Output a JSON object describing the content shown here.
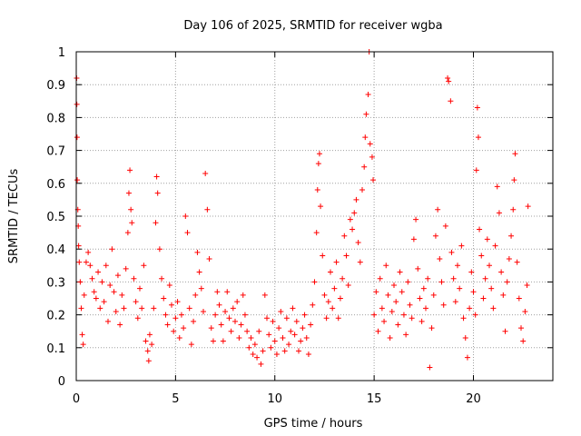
{
  "chart_data": {
    "type": "scatter",
    "title": "Day 106 of 2025, SRMTID for receiver wgba",
    "xlabel": "GPS time / hours",
    "ylabel": "SRMTID / TECUs",
    "xlim": [
      0,
      24
    ],
    "ylim": [
      0,
      1
    ],
    "xticks": [
      0,
      5,
      10,
      15,
      20
    ],
    "xtick_labels": [
      "0",
      "5",
      "10",
      "15",
      "20"
    ],
    "yticks": [
      0,
      0.1,
      0.2,
      0.3,
      0.4,
      0.5,
      0.6,
      0.7,
      0.8,
      0.9,
      1
    ],
    "ytick_labels": [
      "0",
      "0.1",
      "0.2",
      "0.3",
      "0.4",
      "0.5",
      "0.6",
      "0.7",
      "0.8",
      "0.9",
      "1"
    ],
    "grid": true,
    "marker": "+",
    "series_color": "#ff0000",
    "series": [
      {
        "name": "wgba",
        "points": [
          [
            0.02,
            0.92
          ],
          [
            0.03,
            0.84
          ],
          [
            0.04,
            0.74
          ],
          [
            0.05,
            0.61
          ],
          [
            0.08,
            0.52
          ],
          [
            0.1,
            0.47
          ],
          [
            0.12,
            0.41
          ],
          [
            0.15,
            0.36
          ],
          [
            0.2,
            0.3
          ],
          [
            0.25,
            0.22
          ],
          [
            0.3,
            0.14
          ],
          [
            0.35,
            0.11
          ],
          [
            0.4,
            0.26
          ],
          [
            0.5,
            0.36
          ],
          [
            0.6,
            0.39
          ],
          [
            0.7,
            0.35
          ],
          [
            0.8,
            0.31
          ],
          [
            0.9,
            0.27
          ],
          [
            1.0,
            0.25
          ],
          [
            1.1,
            0.33
          ],
          [
            1.2,
            0.22
          ],
          [
            1.3,
            0.3
          ],
          [
            1.4,
            0.24
          ],
          [
            1.5,
            0.35
          ],
          [
            1.6,
            0.18
          ],
          [
            1.7,
            0.29
          ],
          [
            1.8,
            0.4
          ],
          [
            1.9,
            0.27
          ],
          [
            2.0,
            0.21
          ],
          [
            2.1,
            0.32
          ],
          [
            2.2,
            0.17
          ],
          [
            2.3,
            0.26
          ],
          [
            2.4,
            0.22
          ],
          [
            2.5,
            0.34
          ],
          [
            2.6,
            0.45
          ],
          [
            2.65,
            0.57
          ],
          [
            2.7,
            0.64
          ],
          [
            2.75,
            0.52
          ],
          [
            2.8,
            0.48
          ],
          [
            2.9,
            0.31
          ],
          [
            3.0,
            0.24
          ],
          [
            3.1,
            0.19
          ],
          [
            3.2,
            0.28
          ],
          [
            3.3,
            0.22
          ],
          [
            3.4,
            0.35
          ],
          [
            3.5,
            0.12
          ],
          [
            3.6,
            0.09
          ],
          [
            3.65,
            0.06
          ],
          [
            3.7,
            0.14
          ],
          [
            3.8,
            0.11
          ],
          [
            3.9,
            0.22
          ],
          [
            4.0,
            0.48
          ],
          [
            4.05,
            0.62
          ],
          [
            4.1,
            0.57
          ],
          [
            4.2,
            0.4
          ],
          [
            4.3,
            0.31
          ],
          [
            4.4,
            0.25
          ],
          [
            4.5,
            0.2
          ],
          [
            4.6,
            0.17
          ],
          [
            4.7,
            0.29
          ],
          [
            4.8,
            0.23
          ],
          [
            4.9,
            0.15
          ],
          [
            5.0,
            0.19
          ],
          [
            5.1,
            0.24
          ],
          [
            5.2,
            0.13
          ],
          [
            5.3,
            0.2
          ],
          [
            5.4,
            0.16
          ],
          [
            5.5,
            0.5
          ],
          [
            5.6,
            0.45
          ],
          [
            5.7,
            0.22
          ],
          [
            5.8,
            0.11
          ],
          [
            5.9,
            0.18
          ],
          [
            6.0,
            0.26
          ],
          [
            6.1,
            0.39
          ],
          [
            6.2,
            0.33
          ],
          [
            6.3,
            0.28
          ],
          [
            6.4,
            0.21
          ],
          [
            6.5,
            0.63
          ],
          [
            6.6,
            0.52
          ],
          [
            6.7,
            0.37
          ],
          [
            6.8,
            0.16
          ],
          [
            6.9,
            0.12
          ],
          [
            7.0,
            0.2
          ],
          [
            7.1,
            0.27
          ],
          [
            7.2,
            0.23
          ],
          [
            7.3,
            0.17
          ],
          [
            7.4,
            0.12
          ],
          [
            7.5,
            0.21
          ],
          [
            7.6,
            0.27
          ],
          [
            7.7,
            0.19
          ],
          [
            7.8,
            0.15
          ],
          [
            7.9,
            0.22
          ],
          [
            8.0,
            0.18
          ],
          [
            8.1,
            0.24
          ],
          [
            8.2,
            0.13
          ],
          [
            8.3,
            0.17
          ],
          [
            8.4,
            0.26
          ],
          [
            8.5,
            0.2
          ],
          [
            8.6,
            0.15
          ],
          [
            8.7,
            0.1
          ],
          [
            8.8,
            0.13
          ],
          [
            8.9,
            0.08
          ],
          [
            9.0,
            0.11
          ],
          [
            9.1,
            0.07
          ],
          [
            9.2,
            0.15
          ],
          [
            9.3,
            0.05
          ],
          [
            9.4,
            0.09
          ],
          [
            9.5,
            0.26
          ],
          [
            9.6,
            0.19
          ],
          [
            9.7,
            0.14
          ],
          [
            9.8,
            0.1
          ],
          [
            9.9,
            0.18
          ],
          [
            10.0,
            0.12
          ],
          [
            10.1,
            0.08
          ],
          [
            10.2,
            0.16
          ],
          [
            10.3,
            0.21
          ],
          [
            10.4,
            0.13
          ],
          [
            10.5,
            0.09
          ],
          [
            10.6,
            0.19
          ],
          [
            10.7,
            0.11
          ],
          [
            10.8,
            0.15
          ],
          [
            10.9,
            0.22
          ],
          [
            11.0,
            0.14
          ],
          [
            11.1,
            0.18
          ],
          [
            11.2,
            0.09
          ],
          [
            11.3,
            0.12
          ],
          [
            11.4,
            0.16
          ],
          [
            11.5,
            0.2
          ],
          [
            11.6,
            0.13
          ],
          [
            11.7,
            0.08
          ],
          [
            11.8,
            0.17
          ],
          [
            11.9,
            0.23
          ],
          [
            12.0,
            0.3
          ],
          [
            12.1,
            0.45
          ],
          [
            12.15,
            0.58
          ],
          [
            12.2,
            0.66
          ],
          [
            12.25,
            0.69
          ],
          [
            12.3,
            0.53
          ],
          [
            12.4,
            0.38
          ],
          [
            12.5,
            0.26
          ],
          [
            12.6,
            0.19
          ],
          [
            12.7,
            0.24
          ],
          [
            12.8,
            0.33
          ],
          [
            12.9,
            0.22
          ],
          [
            13.0,
            0.28
          ],
          [
            13.1,
            0.36
          ],
          [
            13.2,
            0.19
          ],
          [
            13.3,
            0.25
          ],
          [
            13.4,
            0.31
          ],
          [
            13.5,
            0.44
          ],
          [
            13.6,
            0.38
          ],
          [
            13.7,
            0.29
          ],
          [
            13.8,
            0.49
          ],
          [
            13.9,
            0.46
          ],
          [
            14.0,
            0.51
          ],
          [
            14.1,
            0.55
          ],
          [
            14.2,
            0.42
          ],
          [
            14.3,
            0.36
          ],
          [
            14.4,
            0.58
          ],
          [
            14.5,
            0.65
          ],
          [
            14.55,
            0.74
          ],
          [
            14.6,
            0.81
          ],
          [
            14.7,
            0.87
          ],
          [
            14.75,
            1.0
          ],
          [
            14.8,
            0.72
          ],
          [
            14.9,
            0.68
          ],
          [
            14.95,
            0.61
          ],
          [
            15.0,
            0.2
          ],
          [
            15.1,
            0.27
          ],
          [
            15.2,
            0.15
          ],
          [
            15.3,
            0.31
          ],
          [
            15.4,
            0.22
          ],
          [
            15.5,
            0.18
          ],
          [
            15.6,
            0.35
          ],
          [
            15.7,
            0.26
          ],
          [
            15.8,
            0.13
          ],
          [
            15.9,
            0.21
          ],
          [
            16.0,
            0.29
          ],
          [
            16.1,
            0.24
          ],
          [
            16.2,
            0.17
          ],
          [
            16.3,
            0.33
          ],
          [
            16.4,
            0.27
          ],
          [
            16.5,
            0.2
          ],
          [
            16.6,
            0.14
          ],
          [
            16.7,
            0.3
          ],
          [
            16.8,
            0.23
          ],
          [
            16.9,
            0.19
          ],
          [
            17.0,
            0.43
          ],
          [
            17.1,
            0.49
          ],
          [
            17.2,
            0.34
          ],
          [
            17.3,
            0.25
          ],
          [
            17.4,
            0.18
          ],
          [
            17.5,
            0.28
          ],
          [
            17.6,
            0.22
          ],
          [
            17.7,
            0.31
          ],
          [
            17.8,
            0.04
          ],
          [
            17.9,
            0.16
          ],
          [
            18.0,
            0.26
          ],
          [
            18.1,
            0.44
          ],
          [
            18.2,
            0.52
          ],
          [
            18.3,
            0.37
          ],
          [
            18.4,
            0.3
          ],
          [
            18.5,
            0.23
          ],
          [
            18.6,
            0.47
          ],
          [
            18.7,
            0.92
          ],
          [
            18.75,
            0.91
          ],
          [
            18.85,
            0.85
          ],
          [
            18.9,
            0.39
          ],
          [
            19.0,
            0.31
          ],
          [
            19.1,
            0.24
          ],
          [
            19.2,
            0.35
          ],
          [
            19.3,
            0.28
          ],
          [
            19.4,
            0.41
          ],
          [
            19.5,
            0.19
          ],
          [
            19.6,
            0.13
          ],
          [
            19.7,
            0.07
          ],
          [
            19.8,
            0.22
          ],
          [
            19.9,
            0.33
          ],
          [
            20.0,
            0.27
          ],
          [
            20.1,
            0.2
          ],
          [
            20.15,
            0.64
          ],
          [
            20.2,
            0.83
          ],
          [
            20.25,
            0.74
          ],
          [
            20.3,
            0.46
          ],
          [
            20.4,
            0.38
          ],
          [
            20.5,
            0.25
          ],
          [
            20.6,
            0.31
          ],
          [
            20.7,
            0.43
          ],
          [
            20.8,
            0.35
          ],
          [
            20.9,
            0.28
          ],
          [
            21.0,
            0.22
          ],
          [
            21.1,
            0.41
          ],
          [
            21.2,
            0.59
          ],
          [
            21.3,
            0.51
          ],
          [
            21.4,
            0.33
          ],
          [
            21.5,
            0.26
          ],
          [
            21.6,
            0.15
          ],
          [
            21.7,
            0.3
          ],
          [
            21.8,
            0.37
          ],
          [
            21.9,
            0.44
          ],
          [
            22.0,
            0.52
          ],
          [
            22.05,
            0.61
          ],
          [
            22.1,
            0.69
          ],
          [
            22.2,
            0.36
          ],
          [
            22.3,
            0.25
          ],
          [
            22.4,
            0.16
          ],
          [
            22.5,
            0.12
          ],
          [
            22.6,
            0.21
          ],
          [
            22.7,
            0.29
          ],
          [
            22.75,
            0.53
          ]
        ]
      }
    ]
  }
}
